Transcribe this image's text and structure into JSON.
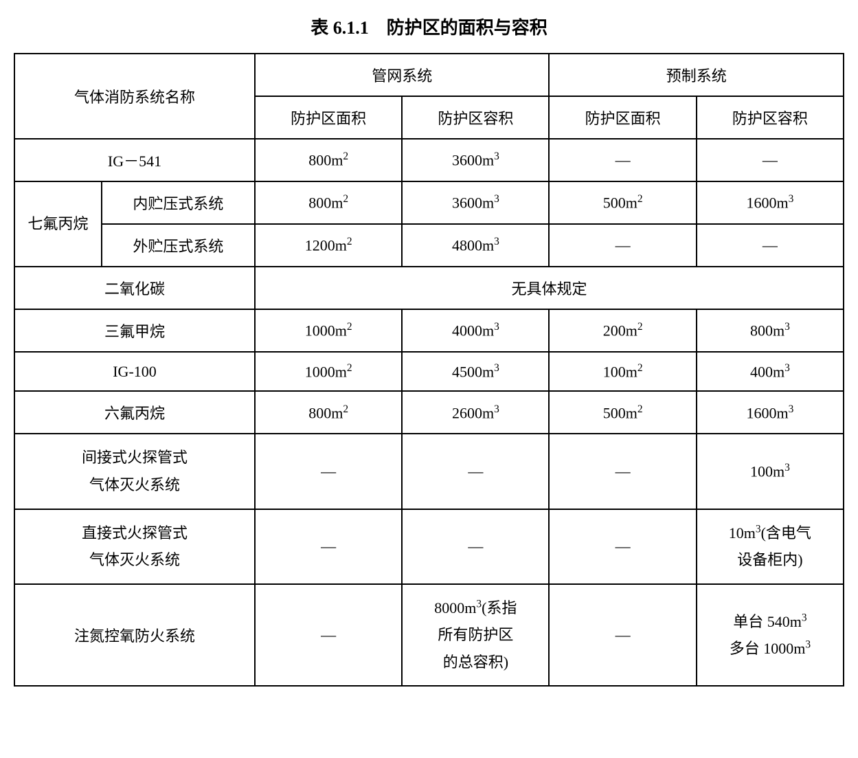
{
  "title": "表 6.1.1　防护区的面积与容积",
  "header": {
    "systemName": "气体消防系统名称",
    "pipeNetwork": "管网系统",
    "prefab": "预制系统",
    "areaLabel": "防护区面积",
    "volumeLabel": "防护区容积"
  },
  "rows": {
    "ig541": {
      "name": "IG－541",
      "pipeArea": "800m²",
      "pipeVolume": "3600m³",
      "prefabArea": "—",
      "prefabVolume": "—"
    },
    "qfbh": {
      "groupName": "七氟丙烷",
      "innerStorage": {
        "name": "内贮压式系统",
        "pipeArea": "800m²",
        "pipeVolume": "3600m³",
        "prefabArea": "500m²",
        "prefabVolume": "1600m³"
      },
      "outerStorage": {
        "name": "外贮压式系统",
        "pipeArea": "1200m²",
        "pipeVolume": "4800m³",
        "prefabArea": "—",
        "prefabVolume": "—"
      }
    },
    "co2": {
      "name": "二氧化碳",
      "note": "无具体规定"
    },
    "trifluoromethane": {
      "name": "三氟甲烷",
      "pipeArea": "1000m²",
      "pipeVolume": "4000m³",
      "prefabArea": "200m²",
      "prefabVolume": "800m³"
    },
    "ig100": {
      "name": "IG-100",
      "pipeArea": "1000m²",
      "pipeVolume": "4500m³",
      "prefabArea": "100m²",
      "prefabVolume": "400m³"
    },
    "hexafluoropropane": {
      "name": "六氟丙烷",
      "pipeArea": "800m²",
      "pipeVolume": "2600m³",
      "prefabArea": "500m²",
      "prefabVolume": "1600m³"
    },
    "indirectFireDetection": {
      "name": "间接式火探管式\n气体灭火系统",
      "pipeArea": "—",
      "pipeVolume": "—",
      "prefabArea": "—",
      "prefabVolume": "100m³"
    },
    "directFireDetection": {
      "name": "直接式火探管式\n气体灭火系统",
      "pipeArea": "—",
      "pipeVolume": "—",
      "prefabArea": "—",
      "prefabVolume": "10m³(含电气\n设备柜内)"
    },
    "nitrogenOxygenControl": {
      "name": "注氮控氧防火系统",
      "pipeArea": "—",
      "pipeVolume": "8000m³(系指\n所有防护区\n的总容积)",
      "prefabArea": "—",
      "prefabVolume": "单台 540m³\n多台 1000m³"
    }
  },
  "styling": {
    "borderColor": "#000000",
    "backgroundColor": "#ffffff",
    "textColor": "#000000",
    "titleFontSize": 26,
    "cellFontSize": 22,
    "fontFamily": "SimSun",
    "borderWidth": 2
  }
}
